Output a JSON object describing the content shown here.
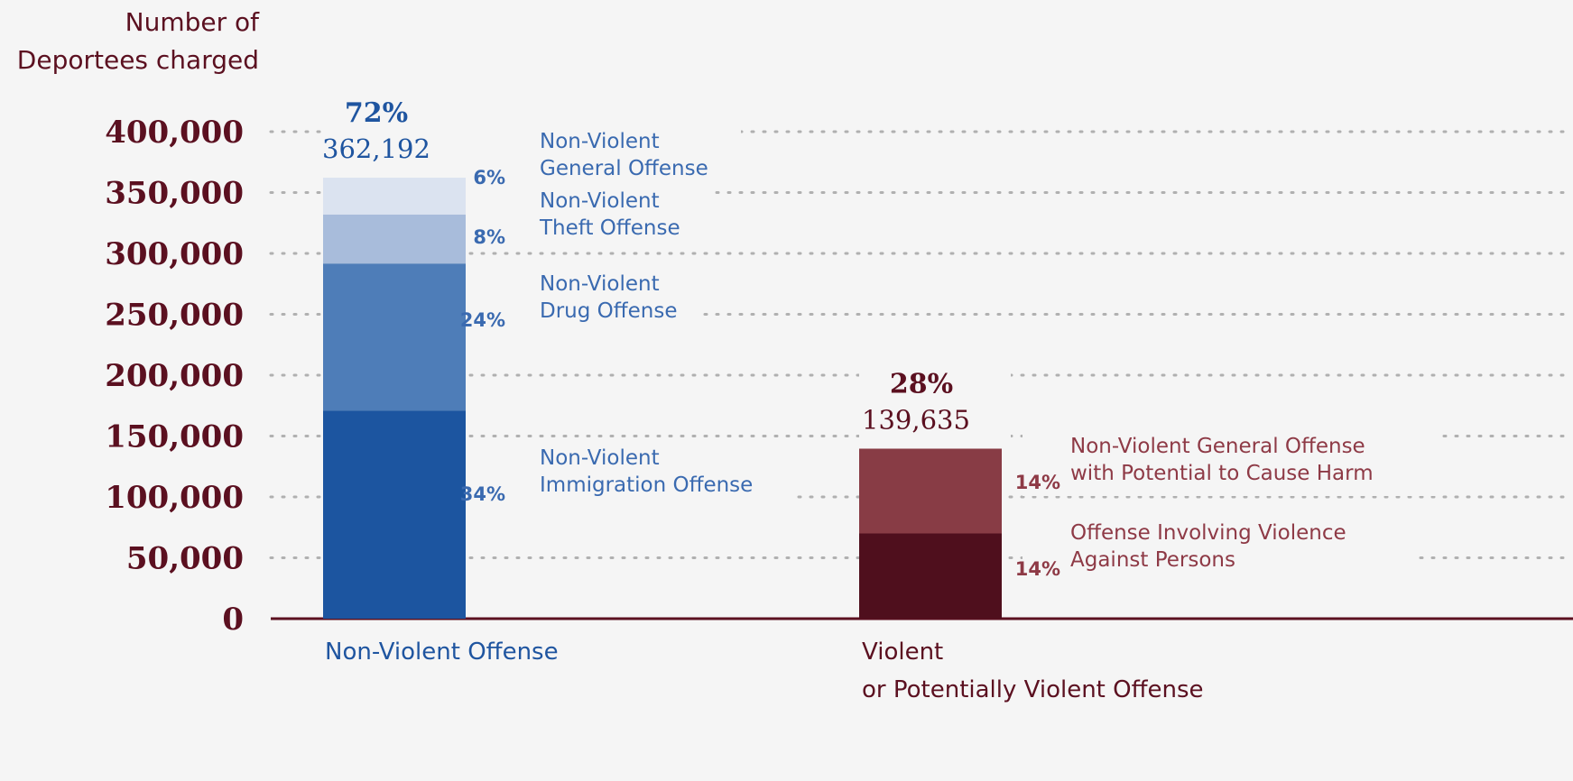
{
  "colors": {
    "background": "#f5f5f5",
    "axis_dark": "#5b1020",
    "blue_text": "#3a6ab0",
    "blue_dark_text": "#1f55a0",
    "red_text": "#8e3a46",
    "red_dark_text": "#5b1020",
    "gridline": "#b0b0b0"
  },
  "chart_data": {
    "type": "bar",
    "stacked": true,
    "ylabel_lines": [
      "Number of",
      "Deportees charged"
    ],
    "ylim": [
      0,
      400000
    ],
    "yticks": [
      0,
      50000,
      100000,
      150000,
      200000,
      250000,
      300000,
      350000,
      400000
    ],
    "ytick_labels": [
      "0",
      "50,000",
      "100,000",
      "150,000",
      "200,000",
      "250,000",
      "300,000",
      "350,000",
      "400,000"
    ],
    "grid": "dotted horizontal",
    "categories": [
      {
        "label_lines": [
          "Non-Violent Offense"
        ],
        "total": 362192,
        "total_label": "362,192",
        "percent_label": "72%",
        "theme": "blue",
        "segments": [
          {
            "label_lines": [
              "Non-Violent",
              "Immigration Offense"
            ],
            "percent_label": "34%",
            "value": 171000,
            "color": "#1c55a0"
          },
          {
            "label_lines": [
              "Non-Violent",
              "Drug Offense"
            ],
            "percent_label": "24%",
            "value": 120700,
            "color": "#4e7db8"
          },
          {
            "label_lines": [
              "Non-Violent",
              "Theft Offense"
            ],
            "percent_label": "8%",
            "value": 40300,
            "color": "#a8bcdb"
          },
          {
            "label_lines": [
              "Non-Violent",
              "General Offense"
            ],
            "percent_label": "6%",
            "value": 30192,
            "color": "#dbe3f0"
          }
        ]
      },
      {
        "label_lines": [
          "Violent",
          "or Potentially Violent Offense"
        ],
        "total": 139635,
        "total_label": "139,635",
        "percent_label": "28%",
        "theme": "red",
        "segments": [
          {
            "label_lines": [
              "Offense Involving Violence",
              "Against Persons"
            ],
            "percent_label": "14%",
            "value": 70000,
            "color": "#4f0f1d"
          },
          {
            "label_lines": [
              "Non-Violent General Offense",
              "with Potential to Cause Harm"
            ],
            "percent_label": "14%",
            "value": 69635,
            "color": "#883c45"
          }
        ]
      }
    ]
  }
}
